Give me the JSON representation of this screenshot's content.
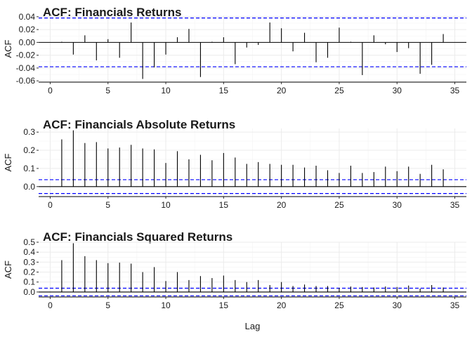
{
  "chart_data": [
    {
      "type": "bar",
      "title": "ACF: Financials Returns",
      "xlabel": "",
      "ylabel": "ACF",
      "xlim": [
        -1,
        36
      ],
      "ylim": [
        -0.062,
        0.042
      ],
      "xticks": [
        0,
        5,
        10,
        15,
        20,
        25,
        30,
        35
      ],
      "yticks": [
        -0.06,
        -0.04,
        -0.02,
        0.0,
        0.02,
        0.04
      ],
      "ytick_labels": [
        "-0.06",
        "-0.04",
        "-0.02",
        "0.00",
        "0.02",
        "0.04"
      ],
      "ci": [
        -0.038,
        0.038
      ],
      "lags": [
        1,
        2,
        3,
        4,
        5,
        6,
        7,
        8,
        9,
        10,
        11,
        12,
        13,
        14,
        15,
        16,
        17,
        18,
        19,
        20,
        21,
        22,
        23,
        24,
        25,
        26,
        27,
        28,
        29,
        30,
        31,
        32,
        33,
        34
      ],
      "values": [
        0.001,
        -0.019,
        0.011,
        -0.028,
        0.005,
        -0.024,
        0.031,
        -0.057,
        -0.039,
        -0.019,
        0.008,
        0.021,
        -0.054,
        0.001,
        0.008,
        -0.034,
        -0.008,
        -0.004,
        0.031,
        0.022,
        -0.014,
        0.015,
        -0.031,
        -0.024,
        0.023,
        0.001,
        -0.051,
        0.011,
        -0.003,
        -0.015,
        -0.009,
        -0.049,
        -0.035,
        0.013
      ]
    },
    {
      "type": "bar",
      "title": "ACF: Financials Absolute Returns",
      "xlabel": "",
      "ylabel": "ACF",
      "xlim": [
        -1,
        36
      ],
      "ylim": [
        -0.055,
        0.32
      ],
      "xticks": [
        0,
        5,
        10,
        15,
        20,
        25,
        30,
        35
      ],
      "yticks": [
        0.0,
        0.1,
        0.2,
        0.3
      ],
      "ytick_labels": [
        "0.0",
        "0.1",
        "0.2",
        "0.3"
      ],
      "ci": [
        -0.038,
        0.038
      ],
      "lags": [
        1,
        2,
        3,
        4,
        5,
        6,
        7,
        8,
        9,
        10,
        11,
        12,
        13,
        14,
        15,
        16,
        17,
        18,
        19,
        20,
        21,
        22,
        23,
        24,
        25,
        26,
        27,
        28,
        29,
        30,
        31,
        32,
        33,
        34
      ],
      "values": [
        0.26,
        0.31,
        0.24,
        0.245,
        0.21,
        0.215,
        0.23,
        0.21,
        0.205,
        0.13,
        0.195,
        0.15,
        0.175,
        0.145,
        0.185,
        0.16,
        0.125,
        0.135,
        0.125,
        0.12,
        0.12,
        0.105,
        0.115,
        0.09,
        0.075,
        0.115,
        0.075,
        0.08,
        0.11,
        0.085,
        0.11,
        0.07,
        0.12,
        0.095
      ]
    },
    {
      "type": "bar",
      "title": "ACF: Financials Squared Returns",
      "xlabel": "Lag",
      "ylabel": "ACF",
      "xlim": [
        -1,
        36
      ],
      "ylim": [
        -0.05,
        0.5
      ],
      "xticks": [
        0,
        5,
        10,
        15,
        20,
        25,
        30,
        35
      ],
      "yticks": [
        0.0,
        0.1,
        0.2,
        0.3,
        0.4,
        0.5
      ],
      "ytick_labels": [
        "0.0",
        "0.1",
        "0.2",
        "0.3",
        "0.4",
        "0.5"
      ],
      "ci": [
        -0.038,
        0.038
      ],
      "lags": [
        1,
        2,
        3,
        4,
        5,
        6,
        7,
        8,
        9,
        10,
        11,
        12,
        13,
        14,
        15,
        16,
        17,
        18,
        19,
        20,
        21,
        22,
        23,
        24,
        25,
        26,
        27,
        28,
        29,
        30,
        31,
        32,
        33,
        34
      ],
      "values": [
        0.32,
        0.49,
        0.36,
        0.32,
        0.29,
        0.295,
        0.285,
        0.2,
        0.25,
        0.11,
        0.2,
        0.12,
        0.16,
        0.14,
        0.165,
        0.12,
        0.1,
        0.12,
        0.07,
        0.1,
        0.06,
        0.075,
        0.06,
        0.06,
        0.04,
        0.055,
        0.05,
        0.045,
        0.055,
        0.05,
        0.065,
        0.035,
        0.07,
        0.045
      ]
    }
  ]
}
